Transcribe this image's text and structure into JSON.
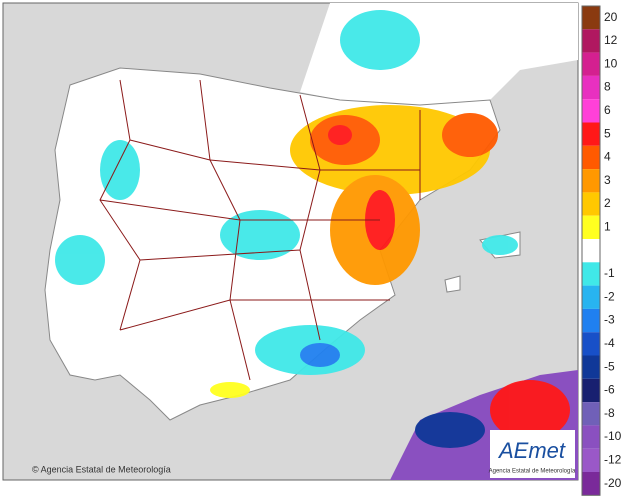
{
  "map": {
    "credit": "© Agencia Estatal de Meteorología",
    "logo": {
      "name": "AEmet",
      "caption": "Agencia Estatal de Meteorología"
    }
  },
  "legend": [
    {
      "value": 20,
      "color": "#8a3a10"
    },
    {
      "value": 12,
      "color": "#b01860"
    },
    {
      "value": 10,
      "color": "#d42090"
    },
    {
      "value": 8,
      "color": "#e830c0"
    },
    {
      "value": 6,
      "color": "#ff40d8"
    },
    {
      "value": 5,
      "color": "#ff1818"
    },
    {
      "value": 4,
      "color": "#ff5a00"
    },
    {
      "value": 3,
      "color": "#ff9800"
    },
    {
      "value": 2,
      "color": "#ffc800"
    },
    {
      "value": 1,
      "color": "#ffff20"
    },
    {
      "value": -1,
      "color": "#40e8e8"
    },
    {
      "value": -2,
      "color": "#28b4f0"
    },
    {
      "value": -3,
      "color": "#2080f0"
    },
    {
      "value": -4,
      "color": "#1850c8"
    },
    {
      "value": -5,
      "color": "#103898"
    },
    {
      "value": -6,
      "color": "#182070"
    },
    {
      "value": -8,
      "color": "#7060b8"
    },
    {
      "value": -10,
      "color": "#8a50c0"
    },
    {
      "value": -12,
      "color": "#9a58c8"
    },
    {
      "value": -20,
      "color": "#7a2a9a"
    }
  ]
}
